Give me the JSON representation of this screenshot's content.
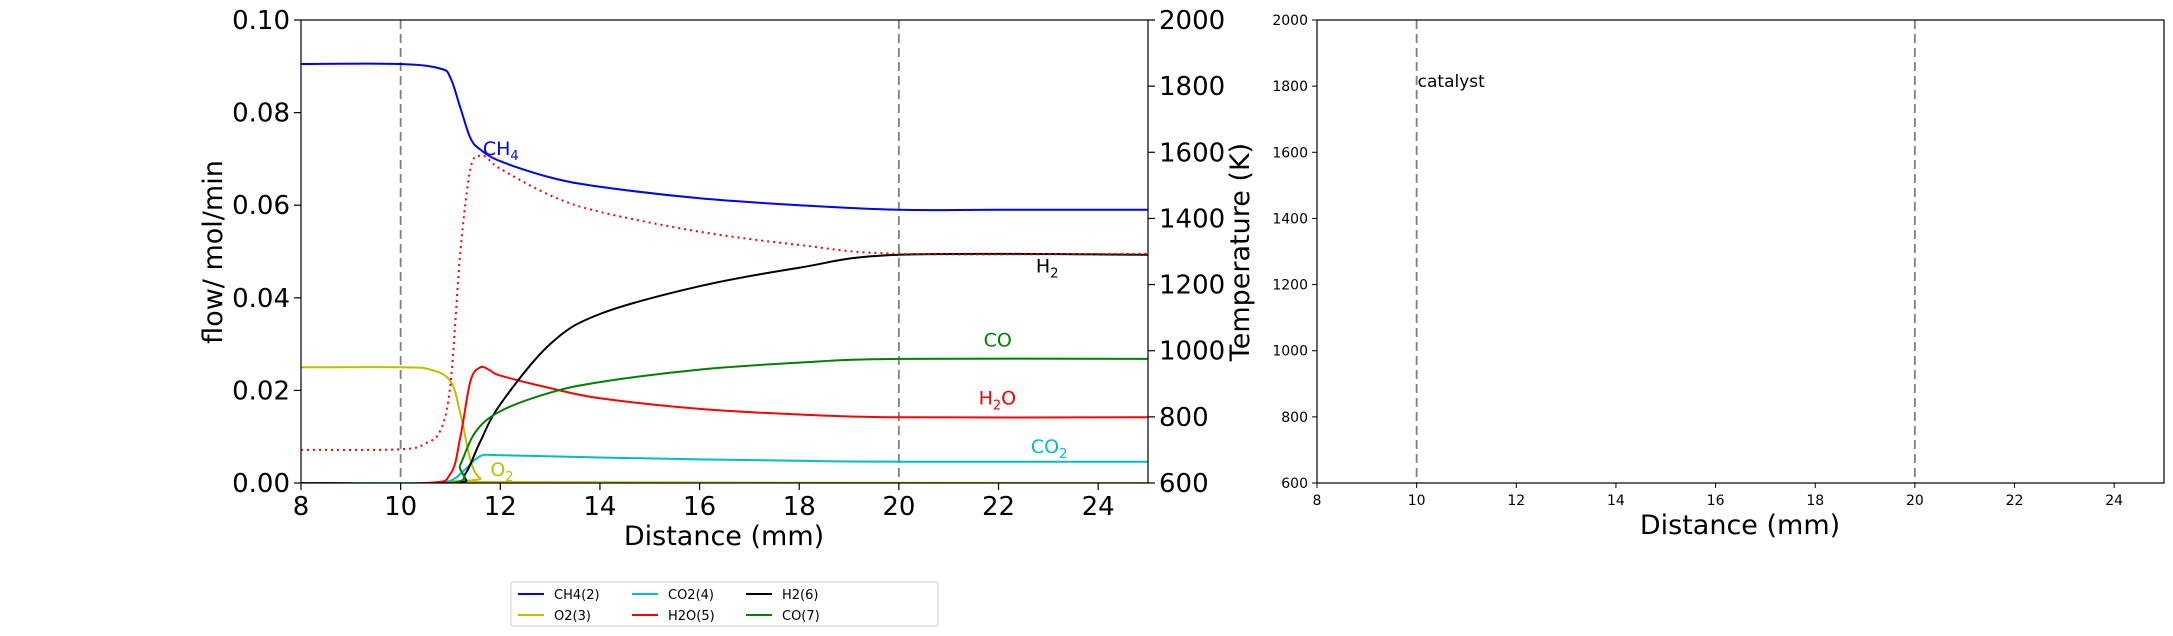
{
  "chart_data": [
    {
      "type": "line",
      "xlabel": "Distance (mm)",
      "ylabel": "flow/ mol/min",
      "y2label": "Temperature (K)",
      "xlim": [
        8,
        25
      ],
      "ylim": [
        0,
        0.1
      ],
      "y2lim": [
        600,
        2000
      ],
      "xticks": [
        "8",
        "10",
        "12",
        "14",
        "16",
        "18",
        "20",
        "22",
        "24"
      ],
      "yticks": [
        "0.00",
        "0.02",
        "0.04",
        "0.06",
        "0.08",
        "0.10"
      ],
      "y2ticks": [
        "600",
        "800",
        "1000",
        "1200",
        "1400",
        "1600",
        "1800",
        "2000"
      ],
      "vlines": [
        10,
        20
      ],
      "series": [
        {
          "name": "CH4(2)",
          "color": "#0000ff",
          "x": [
            8,
            10,
            10.8,
            11.0,
            11.2,
            11.4,
            11.6,
            12,
            13,
            14,
            16,
            18,
            20,
            22,
            25
          ],
          "y": [
            0.0905,
            0.0905,
            0.0895,
            0.0875,
            0.081,
            0.0745,
            0.072,
            0.0695,
            0.066,
            0.064,
            0.0615,
            0.06,
            0.059,
            0.059,
            0.059
          ]
        },
        {
          "name": "O2(3)",
          "color": "#bfbf00",
          "x": [
            8,
            10,
            10.6,
            11.0,
            11.2,
            11.4,
            11.6,
            12,
            25
          ],
          "y": [
            0.025,
            0.025,
            0.0245,
            0.022,
            0.015,
            0.005,
            0.001,
            0.0002,
            0.0
          ]
        },
        {
          "name": "CO2(4)",
          "color": "#00bfbf",
          "x": [
            8,
            10.5,
            11.0,
            11.3,
            11.6,
            12,
            14,
            16,
            18,
            20,
            25
          ],
          "y": [
            0.0,
            0.0,
            0.0005,
            0.003,
            0.0058,
            0.006,
            0.0055,
            0.0051,
            0.0048,
            0.0046,
            0.0046
          ]
        },
        {
          "name": "H2O(5)",
          "color": "#ff0000",
          "x": [
            8,
            10.5,
            11.0,
            11.2,
            11.4,
            11.6,
            11.8,
            12,
            13,
            14,
            16,
            18,
            20,
            25
          ],
          "y": [
            0.0,
            0.0,
            0.002,
            0.01,
            0.022,
            0.025,
            0.0243,
            0.0232,
            0.0205,
            0.0183,
            0.016,
            0.0148,
            0.0142,
            0.0142
          ]
        },
        {
          "name": "H2(6)",
          "color": "#000000",
          "x": [
            8,
            11.0,
            11.3,
            11.6,
            12,
            13,
            14,
            16,
            18,
            20,
            25
          ],
          "y": [
            0.0,
            0.0,
            0.002,
            0.009,
            0.017,
            0.03,
            0.0365,
            0.0425,
            0.0465,
            0.0493,
            0.0493
          ]
        },
        {
          "name": "CO(7)",
          "color": "#008000",
          "x": [
            8,
            11.0,
            11.2,
            11.5,
            12,
            13,
            14,
            16,
            18,
            20,
            25
          ],
          "y": [
            0.0,
            0.0,
            0.004,
            0.011,
            0.0155,
            0.0195,
            0.0218,
            0.0245,
            0.026,
            0.0268,
            0.0268
          ]
        }
      ],
      "temperature": {
        "color": "#ff0000",
        "style": "dotted",
        "x": [
          8,
          10,
          10.5,
          10.8,
          11.0,
          11.2,
          11.4,
          11.6,
          11.8,
          12,
          13,
          14,
          16,
          18,
          20,
          25
        ],
        "y": [
          700,
          702,
          720,
          760,
          900,
          1300,
          1550,
          1590,
          1575,
          1550,
          1470,
          1420,
          1360,
          1320,
          1293,
          1293
        ]
      },
      "annotations": [
        {
          "label": "CH",
          "sub": "4",
          "color": "#0000ff",
          "x": 11.65,
          "y": 0.0708
        },
        {
          "label": "H",
          "sub": "2",
          "color": "#000000",
          "x": 22.75,
          "y": 0.0455
        },
        {
          "label": "CO",
          "sub": "",
          "color": "#008000",
          "x": 21.7,
          "y": 0.0295
        },
        {
          "label": "H",
          "sub": "2",
          "suffix": "O",
          "color": "#ff0000",
          "x": 21.6,
          "y": 0.017
        },
        {
          "label": "CO",
          "sub": "2",
          "color": "#00bfbf",
          "x": 22.65,
          "y": 0.0065
        },
        {
          "label": "O",
          "sub": "2",
          "color": "#bfbf00",
          "x": 11.8,
          "y": 0.0015
        }
      ],
      "legend": {
        "placement": "below",
        "entries": [
          {
            "label": "CH4(2)",
            "color": "#0000ff"
          },
          {
            "label": "O2(3)",
            "color": "#bfbf00"
          },
          {
            "label": "CO2(4)",
            "color": "#00bfbf"
          },
          {
            "label": "H2O(5)",
            "color": "#ff0000"
          },
          {
            "label": "H2(6)",
            "color": "#000000"
          },
          {
            "label": "CO(7)",
            "color": "#008000"
          }
        ]
      }
    },
    {
      "type": "line",
      "xlabel": "Distance (mm)",
      "ylabel": "",
      "xlim": [
        8,
        25
      ],
      "ylim": [
        600,
        2000
      ],
      "xticks": [
        "8",
        "10",
        "12",
        "14",
        "16",
        "18",
        "20",
        "22",
        "24"
      ],
      "yticks": [
        "600",
        "800",
        "1000",
        "1200",
        "1400",
        "1600",
        "1800",
        "2000"
      ],
      "vlines": [
        10,
        20
      ],
      "annotation": {
        "text": "catalyst",
        "x": 10,
        "y": 1800
      },
      "series": []
    }
  ]
}
